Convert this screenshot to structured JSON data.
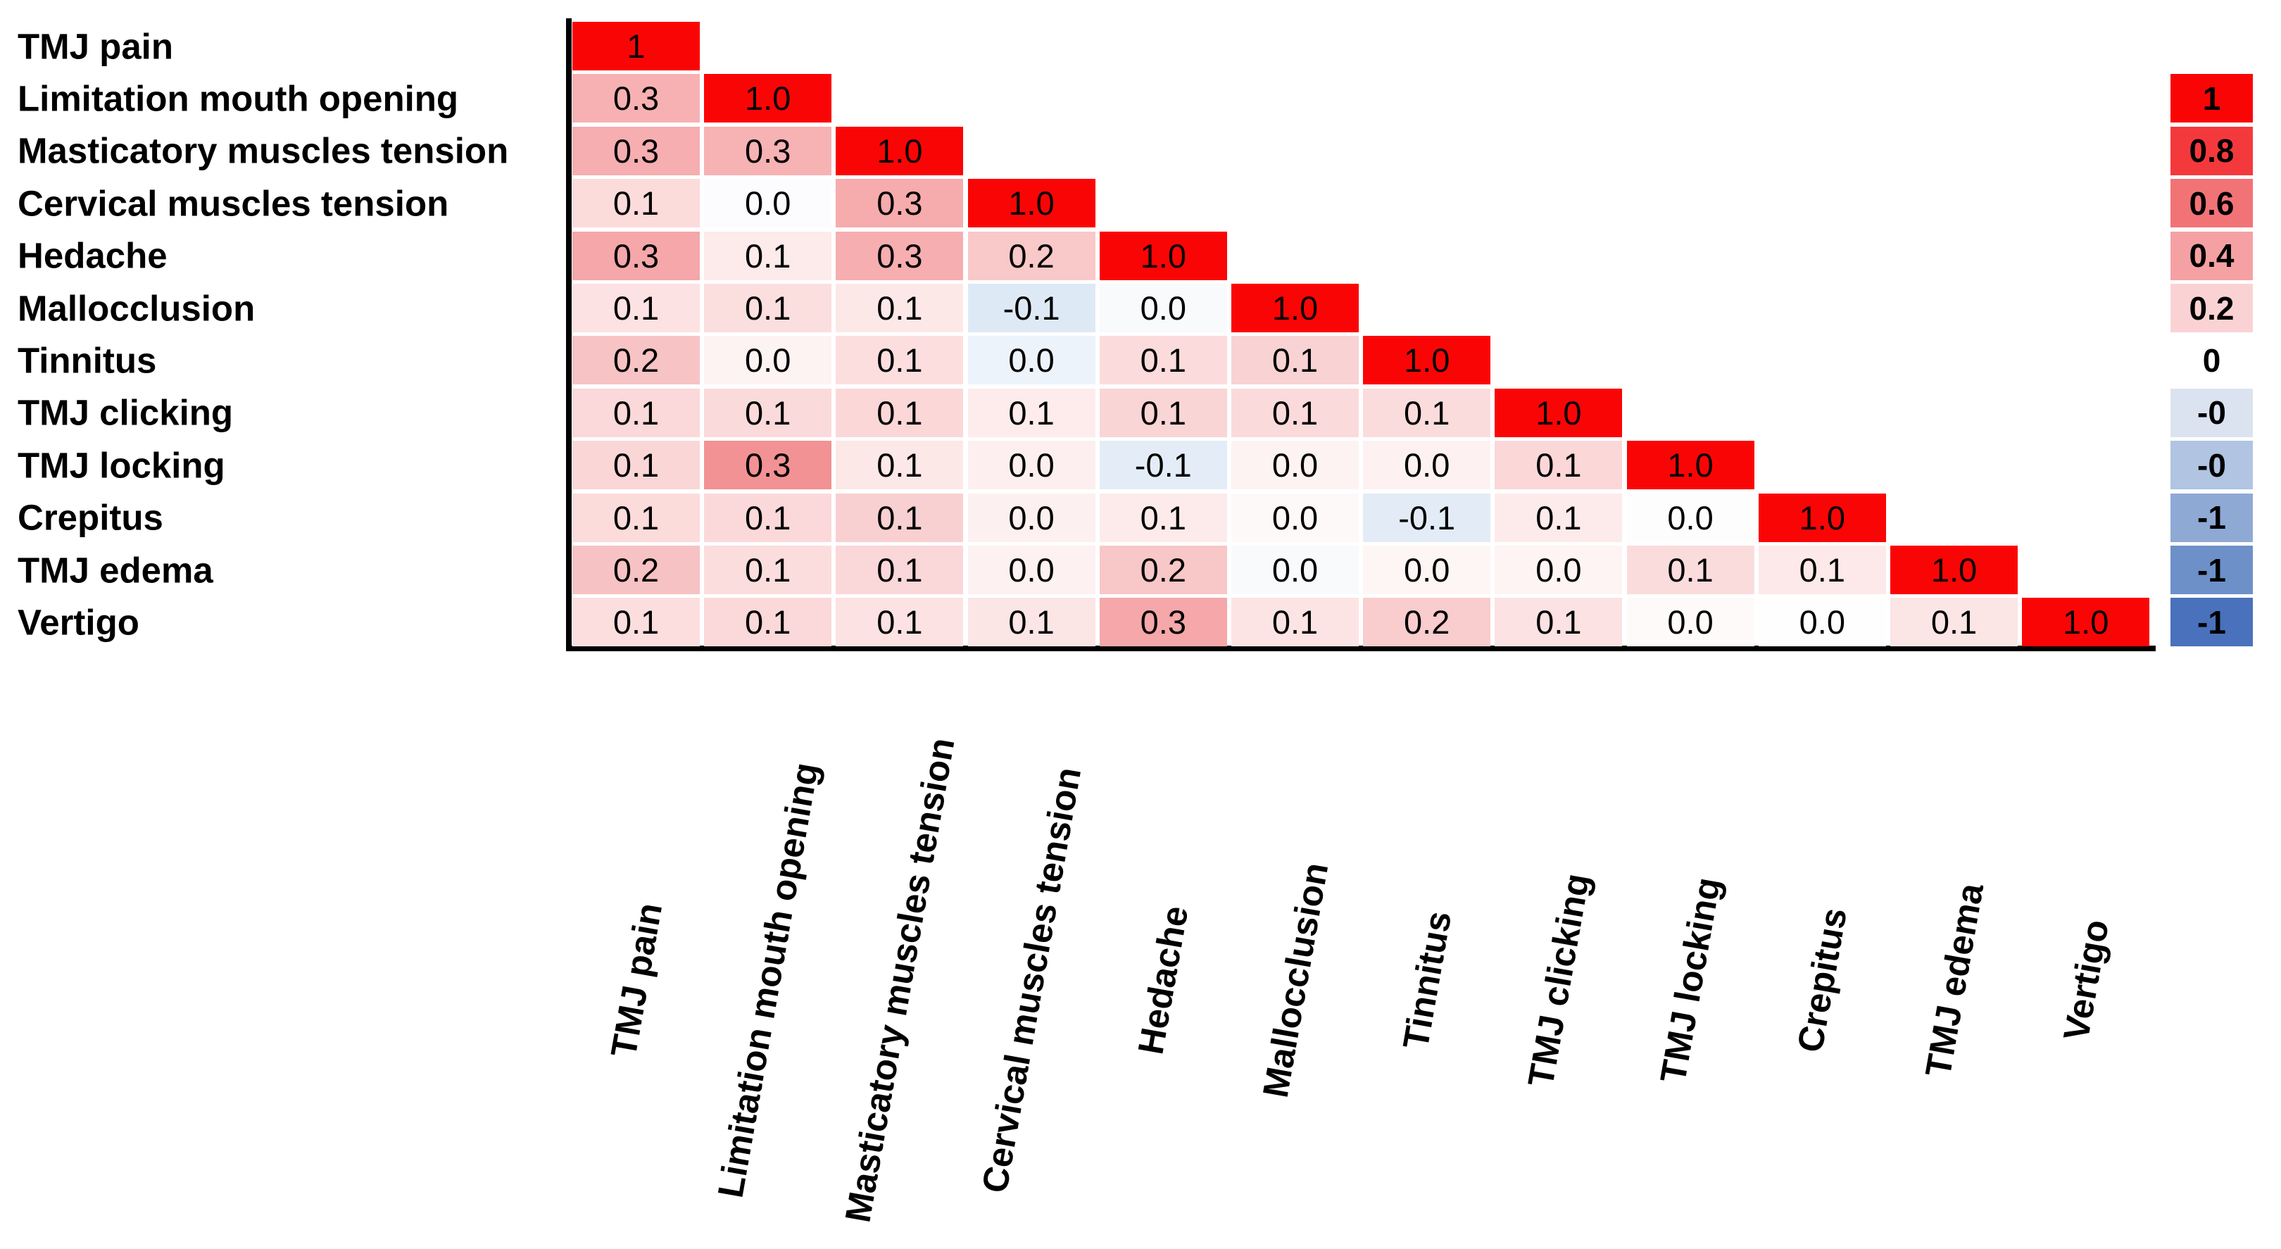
{
  "figure": {
    "description": "Lower-triangular correlation heatmap of temporomandibular joint (TMJ) symptoms with vertical color scale legend",
    "background": "#ffffff",
    "text_color": "#000000"
  },
  "chart_data": {
    "type": "heatmap",
    "title": "",
    "xlabel": "",
    "ylabel": "",
    "grid": false,
    "legend_position": "right-vertical-colorbar",
    "variables": [
      "TMJ pain",
      "Limitation mouth opening",
      "Masticatory muscles tension",
      "Cervical muscles tension",
      "Hedache",
      "Mallocclusion",
      "Tinnitus",
      "TMJ clicking",
      "TMJ locking",
      "Crepitus",
      "TMJ edema",
      "Vertigo"
    ],
    "rows": [
      {
        "values": [
          "1"
        ],
        "colors": [
          "#fa0506"
        ]
      },
      {
        "values": [
          "0.3",
          "1.0"
        ],
        "colors": [
          "#f7b1b3",
          "#fa0506"
        ]
      },
      {
        "values": [
          "0.3",
          "0.3",
          "1.0"
        ],
        "colors": [
          "#f6aeb0",
          "#f7b2b4",
          "#fa0506"
        ]
      },
      {
        "values": [
          "0.1",
          "0.0",
          "0.3",
          "1.0"
        ],
        "colors": [
          "#fcdbdb",
          "#fcfcfe",
          "#f6abad",
          "#fa0506"
        ]
      },
      {
        "values": [
          "0.3",
          "0.1",
          "0.3",
          "0.2",
          "1.0"
        ],
        "colors": [
          "#f5a7a9",
          "#fdeaea",
          "#f6aeb0",
          "#f9c8c9",
          "#fa0506"
        ]
      },
      {
        "values": [
          "0.1",
          "0.1",
          "0.1",
          "-0.1",
          "0.0",
          "1.0"
        ],
        "colors": [
          "#fce2e2",
          "#fbdede",
          "#fde8e8",
          "#ddeaf5",
          "#f8fafc",
          "#fa0506"
        ]
      },
      {
        "values": [
          "0.2",
          "0.0",
          "0.1",
          "0.0",
          "0.1",
          "0.1",
          "1.0"
        ],
        "colors": [
          "#f8c3c4",
          "#fef3f3",
          "#fcdedf",
          "#edf3fa",
          "#fcdbdc",
          "#f9d2d3",
          "#fa0506"
        ]
      },
      {
        "values": [
          "0.1",
          "0.1",
          "0.1",
          "0.1",
          "0.1",
          "0.1",
          "0.1",
          "1.0"
        ],
        "colors": [
          "#fbd8d9",
          "#fbdadb",
          "#fbd7d8",
          "#feecec",
          "#fad5d6",
          "#fbdadb",
          "#fbdcdd",
          "#fa0506"
        ]
      },
      {
        "values": [
          "0.1",
          "0.3",
          "0.1",
          "0.0",
          "-0.1",
          "0.0",
          "0.0",
          "0.1",
          "1.0"
        ],
        "colors": [
          "#fad6d7",
          "#f29294",
          "#fde8e8",
          "#fdefef",
          "#e4edf7",
          "#fef3f3",
          "#fef1f1",
          "#fbd7d8",
          "#fa0506"
        ]
      },
      {
        "values": [
          "0.1",
          "0.1",
          "0.1",
          "0.0",
          "0.1",
          "0.0",
          "-0.1",
          "0.1",
          "0.0",
          "1.0"
        ],
        "colors": [
          "#fcdbdb",
          "#fbd9da",
          "#f9d0d1",
          "#fdf0f0",
          "#fdebeb",
          "#fef9f9",
          "#e3ecf6",
          "#fdebeb",
          "#fefdfd",
          "#fa0506"
        ]
      },
      {
        "values": [
          "0.2",
          "0.1",
          "0.1",
          "0.0",
          "0.2",
          "0.0",
          "0.0",
          "0.0",
          "0.1",
          "0.1",
          "1.0"
        ],
        "colors": [
          "#f7c2c3",
          "#fcdddd",
          "#fad7d8",
          "#fdf1f1",
          "#f8c7c8",
          "#f8fafc",
          "#fef5f5",
          "#fef4f4",
          "#fbdcdd",
          "#fde9e9",
          "#fa0506"
        ]
      },
      {
        "values": [
          "0.1",
          "0.1",
          "0.1",
          "0.1",
          "0.3",
          "0.1",
          "0.2",
          "0.1",
          "0.0",
          "0.0",
          "0.1",
          "1.0"
        ],
        "colors": [
          "#fcdedf",
          "#fbd8d9",
          "#fce2e2",
          "#fce5e5",
          "#f5a7a9",
          "#fce4e4",
          "#f9cccd",
          "#fce2e2",
          "#fefafa",
          "#fefefe",
          "#fce5e5",
          "#fa0506"
        ]
      }
    ],
    "colorbar": {
      "orientation": "vertical",
      "range_top_to_bottom": [
        1,
        -1
      ],
      "tick_labels": [
        "1",
        "0.8",
        "0.6",
        "0.4",
        "0.2",
        "0",
        "-0",
        "-0",
        "-1",
        "-1",
        "-1"
      ],
      "cell_colors": [
        "#fa0506",
        "#f4393d",
        "#f27376",
        "#f5a1a3",
        "#fbd2d3",
        "#ffffff",
        "#dbe3f0",
        "#b1c4e2",
        "#8fa9d5",
        "#6d90c9",
        "#4971bc"
      ]
    },
    "palette": {
      "positive_max": "#fa0506",
      "zero": "#ffffff",
      "negative_max": "#4971bc"
    }
  }
}
